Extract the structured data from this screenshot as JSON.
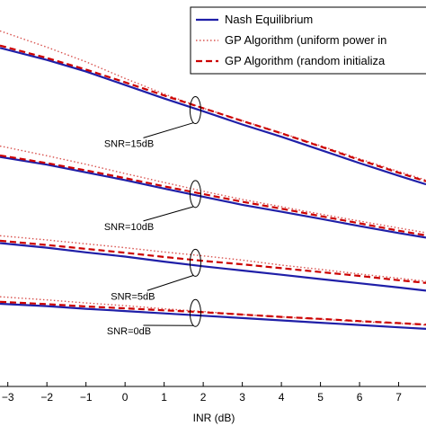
{
  "chart_data": {
    "type": "line",
    "xlabel": "INR (dB)",
    "xlim": [
      -3.2,
      7.7
    ],
    "ylim": [
      0,
      1
    ],
    "xticks": [
      -3,
      -2,
      -1,
      0,
      1,
      2,
      3,
      4,
      5,
      6,
      7
    ],
    "grid": false,
    "legend_position": "top-right",
    "series": [
      {
        "name": "Nash Equilibrium",
        "color": "#1f1fa8",
        "style": "solid",
        "groups": [
          {
            "x": [
              -3.2,
              -2,
              -1,
              0,
              1,
              2,
              3,
              4,
              5,
              6,
              7,
              7.7
            ],
            "y": [
              0.876,
              0.845,
              0.815,
              0.78,
              0.745,
              0.712,
              0.678,
              0.646,
              0.612,
              0.578,
              0.545,
              0.523
            ]
          },
          {
            "x": [
              -3.2,
              -2,
              -1,
              0,
              1,
              2,
              3,
              4,
              5,
              6,
              7,
              7.7
            ],
            "y": [
              0.594,
              0.574,
              0.554,
              0.534,
              0.512,
              0.491,
              0.47,
              0.452,
              0.434,
              0.415,
              0.397,
              0.385
            ]
          },
          {
            "x": [
              -3.2,
              -2,
              -1,
              0,
              1,
              2,
              3,
              4,
              5,
              6,
              7,
              7.7
            ],
            "y": [
              0.371,
              0.359,
              0.347,
              0.336,
              0.323,
              0.311,
              0.3,
              0.289,
              0.278,
              0.267,
              0.256,
              0.248
            ]
          },
          {
            "x": [
              -3.2,
              -2,
              -1,
              0,
              1,
              2,
              3,
              4,
              5,
              6,
              7,
              7.7
            ],
            "y": [
              0.214,
              0.208,
              0.201,
              0.195,
              0.189,
              0.183,
              0.177,
              0.171,
              0.165,
              0.159,
              0.153,
              0.149
            ]
          }
        ]
      },
      {
        "name": "GP Algorithm (uniform power in",
        "color": "#d9534f",
        "style": "dotted",
        "groups": [
          {
            "x": [
              -3.2,
              -2,
              -1,
              0,
              1,
              2,
              3,
              4,
              5,
              6,
              7,
              7.7
            ],
            "y": [
              0.92,
              0.878,
              0.84,
              0.797,
              0.757,
              0.72,
              0.688,
              0.656,
              0.623,
              0.589,
              0.556,
              0.534
            ]
          },
          {
            "x": [
              -3.2,
              -2,
              -1,
              0,
              1,
              2,
              3,
              4,
              5,
              6,
              7,
              7.7
            ],
            "y": [
              0.622,
              0.597,
              0.575,
              0.551,
              0.528,
              0.505,
              0.484,
              0.465,
              0.446,
              0.428,
              0.41,
              0.398
            ]
          },
          {
            "x": [
              -3.2,
              -2,
              -1,
              0,
              1,
              2,
              3,
              4,
              5,
              6,
              7,
              7.7
            ],
            "y": [
              0.39,
              0.379,
              0.369,
              0.359,
              0.348,
              0.338,
              0.327,
              0.314,
              0.303,
              0.291,
              0.28,
              0.272
            ]
          },
          {
            "x": [
              -3.2,
              -2,
              -1,
              0,
              1,
              2,
              3,
              4,
              5,
              6,
              7,
              7.7
            ],
            "y": [
              0.232,
              0.224,
              0.216,
              0.209,
              0.201,
              0.194,
              0.186,
              0.18,
              0.174,
              0.168,
              0.163,
              0.159
            ]
          }
        ]
      },
      {
        "name": "GP Algorithm (random initializa",
        "color": "#cc0000",
        "style": "dashed",
        "groups": [
          {
            "x": [
              -3.2,
              -2,
              -1,
              0,
              1,
              2,
              3,
              4,
              5,
              6,
              7,
              7.7
            ],
            "y": [
              0.882,
              0.85,
              0.82,
              0.787,
              0.753,
              0.72,
              0.687,
              0.655,
              0.621,
              0.586,
              0.553,
              0.531
            ]
          },
          {
            "x": [
              -3.2,
              -2,
              -1,
              0,
              1,
              2,
              3,
              4,
              5,
              6,
              7,
              7.7
            ],
            "y": [
              0.598,
              0.578,
              0.559,
              0.539,
              0.518,
              0.498,
              0.478,
              0.46,
              0.441,
              0.422,
              0.403,
              0.391
            ]
          },
          {
            "x": [
              -3.2,
              -2,
              -1,
              0,
              1,
              2,
              3,
              4,
              5,
              6,
              7,
              7.7
            ],
            "y": [
              0.377,
              0.366,
              0.356,
              0.346,
              0.335,
              0.325,
              0.316,
              0.306,
              0.296,
              0.286,
              0.275,
              0.268
            ]
          },
          {
            "x": [
              -3.2,
              -2,
              -1,
              0,
              1,
              2,
              3,
              4,
              5,
              6,
              7,
              7.7
            ],
            "y": [
              0.219,
              0.213,
              0.207,
              0.202,
              0.197,
              0.192,
              0.186,
              0.18,
              0.175,
              0.169,
              0.164,
              0.16
            ]
          }
        ]
      }
    ],
    "annotations": [
      {
        "text": "SNR=15dB",
        "x": 1.8,
        "y": 0.715,
        "label_x": 0.1,
        "label_y": 0.62
      },
      {
        "text": "SNR=10dB",
        "x": 1.8,
        "y": 0.498,
        "label_x": 0.1,
        "label_y": 0.405
      },
      {
        "text": "SNR=5dB",
        "x": 1.8,
        "y": 0.32,
        "label_x": 0.2,
        "label_y": 0.225
      },
      {
        "text": "SNR=0dB",
        "x": 1.8,
        "y": 0.19,
        "label_x": 0.1,
        "label_y": 0.135
      }
    ]
  }
}
